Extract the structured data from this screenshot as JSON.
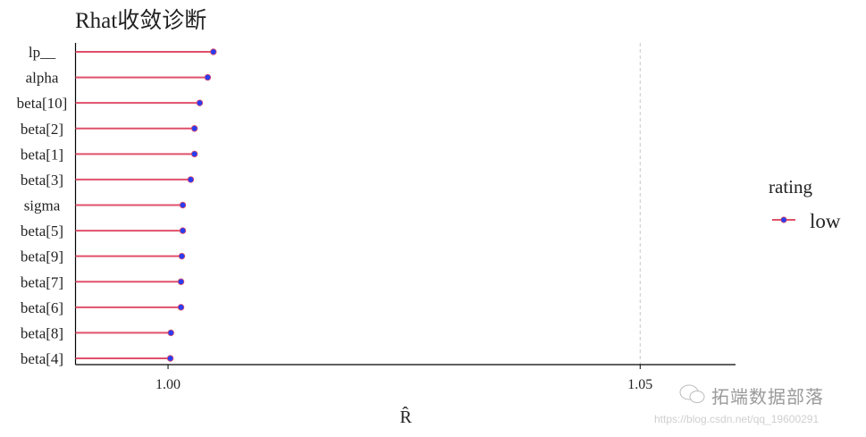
{
  "chart_data": {
    "type": "lollipop",
    "title": "Rhat收敛诊断",
    "xlabel": "R̂",
    "ylabel": "",
    "xlim": [
      0.9902,
      1.0601
    ],
    "xticks": [
      1.0,
      1.05
    ],
    "xtick_labels": [
      "1.00",
      "1.05"
    ],
    "reference_line": 1.05,
    "grid": false,
    "legend": {
      "title": "rating",
      "entries": [
        "low"
      ],
      "placement": "right"
    },
    "categories": [
      "lp__",
      "alpha",
      "beta[10]",
      "beta[2]",
      "beta[1]",
      "beta[3]",
      "sigma",
      "beta[5]",
      "beta[9]",
      "beta[7]",
      "beta[6]",
      "beta[8]",
      "beta[4]"
    ],
    "series": [
      {
        "name": "low",
        "values": [
          1.0048,
          1.0042,
          1.00335,
          1.0028,
          1.0028,
          1.0024,
          1.00156,
          1.00156,
          1.00146,
          1.00137,
          1.00137,
          1.0003,
          1.00024
        ]
      }
    ],
    "colors": {
      "line": "#e0506a",
      "point": "#2a3cf0",
      "refline": "#c8c8c8"
    }
  },
  "watermark": {
    "name": "拓端数据部落",
    "url": "https://blog.csdn.net/qq_19600291"
  }
}
